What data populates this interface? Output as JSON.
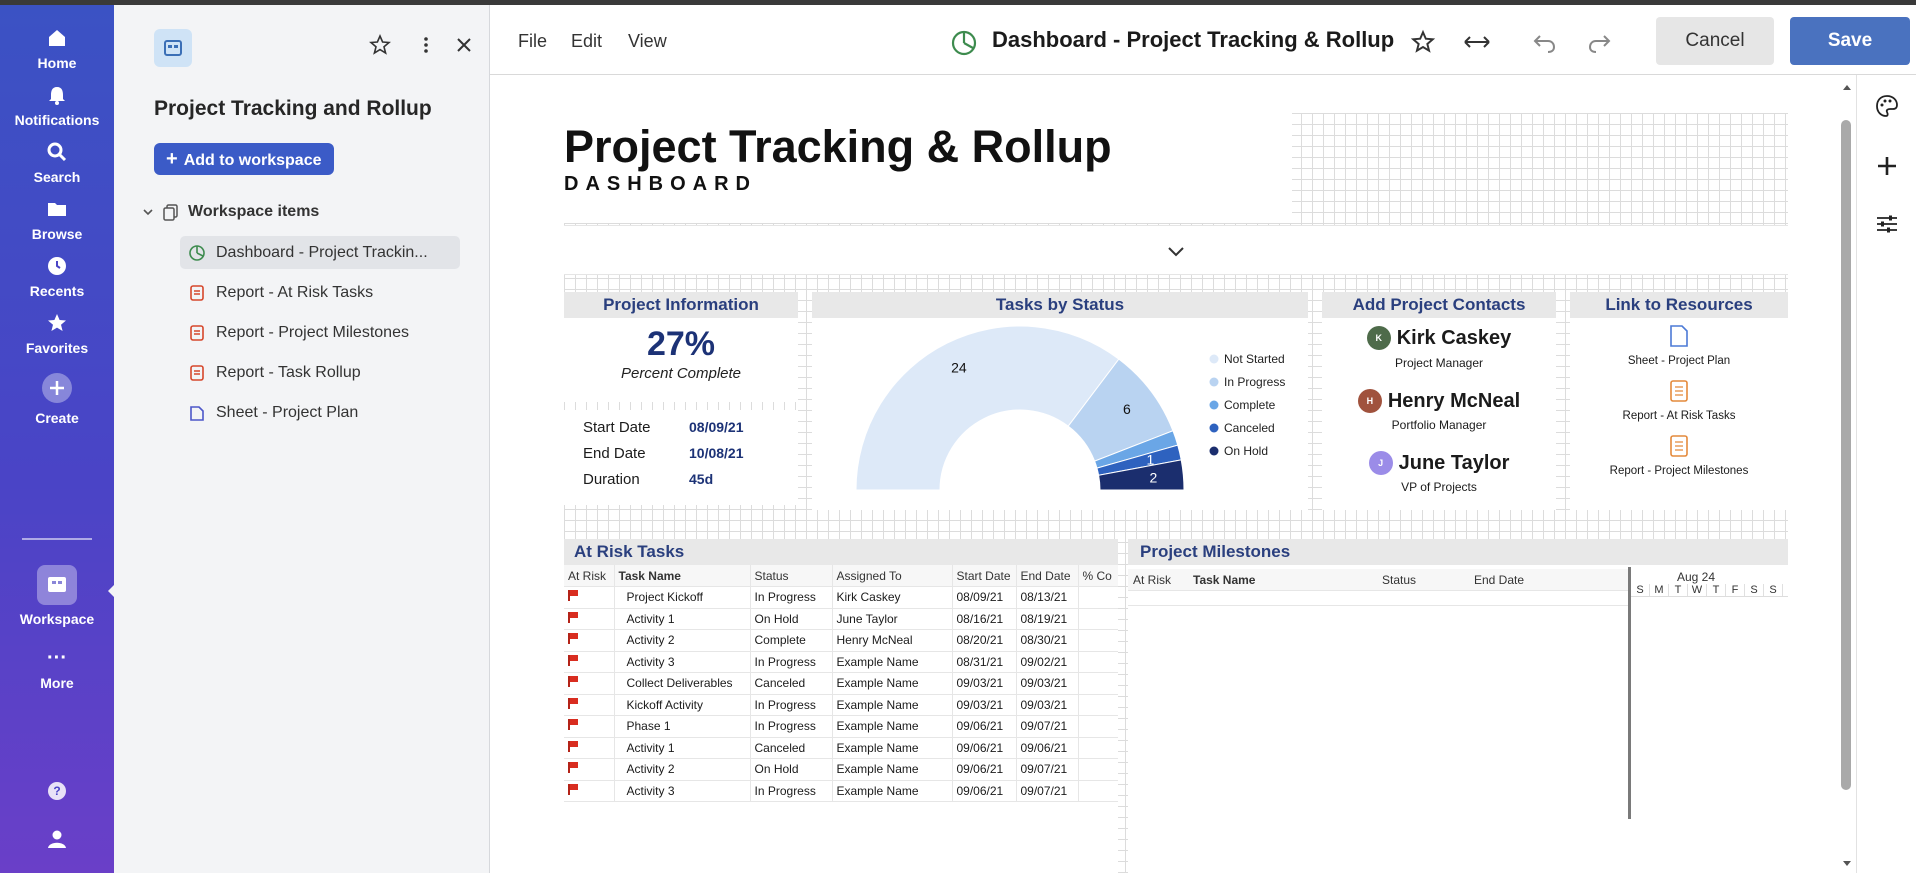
{
  "nav": {
    "items": [
      {
        "label": "Home",
        "icon": "home-icon"
      },
      {
        "label": "Notifications",
        "icon": "bell-icon"
      },
      {
        "label": "Search",
        "icon": "search-icon"
      },
      {
        "label": "Browse",
        "icon": "folder-icon"
      },
      {
        "label": "Recents",
        "icon": "clock-icon"
      },
      {
        "label": "Favorites",
        "icon": "star-icon"
      },
      {
        "label": "Create",
        "icon": "plus-icon"
      },
      {
        "label": "Workspace",
        "icon": "workspace-icon"
      },
      {
        "label": "More",
        "icon": "ellipsis-icon"
      }
    ]
  },
  "panel": {
    "title": "Project Tracking and Rollup",
    "add_button": "Add to workspace",
    "section_label": "Workspace items",
    "items": [
      {
        "label": "Dashboard - Project Trackin...",
        "type": "dashboard"
      },
      {
        "label": "Report - At Risk Tasks",
        "type": "report"
      },
      {
        "label": "Report - Project Milestones",
        "type": "report"
      },
      {
        "label": "Report - Task Rollup",
        "type": "report"
      },
      {
        "label": "Sheet - Project Plan",
        "type": "sheet"
      }
    ]
  },
  "toolbar": {
    "menus": [
      "File",
      "Edit",
      "View"
    ],
    "title": "Dashboard - Project Tracking & Rollup",
    "cancel": "Cancel",
    "save": "Save"
  },
  "dashboard": {
    "title": "Project Tracking & Rollup",
    "subtitle": "DASHBOARD",
    "project_info": {
      "title": "Project Information",
      "percent": "27%",
      "percent_label": "Percent Complete",
      "rows": [
        {
          "label": "Start Date",
          "value": "08/09/21"
        },
        {
          "label": "End Date",
          "value": "10/08/21"
        },
        {
          "label": "Duration",
          "value": "45d"
        }
      ]
    },
    "tasks_by_status": {
      "title": "Tasks by Status"
    },
    "contacts": {
      "title": "Add Project Contacts",
      "people": [
        {
          "initial": "K",
          "name": "Kirk Caskey",
          "role": "Project Manager",
          "color": "#4e6b4a"
        },
        {
          "initial": "H",
          "name": "Henry McNeal",
          "role": "Portfolio Manager",
          "color": "#a0523d"
        },
        {
          "initial": "J",
          "name": "June Taylor",
          "role": "VP of Projects",
          "color": "#9b8ce8"
        }
      ]
    },
    "resources": {
      "title": "Link to Resources",
      "links": [
        {
          "label": "Sheet - Project Plan",
          "icon": "sheet-icon"
        },
        {
          "label": "Report - At Risk Tasks",
          "icon": "report-icon"
        },
        {
          "label": "Report - Project Milestones",
          "icon": "report-icon"
        }
      ]
    },
    "at_risk": {
      "title": "At Risk Tasks",
      "columns": [
        "At Risk",
        "Task Name",
        "Status",
        "Assigned To",
        "Start Date",
        "End Date",
        "% Co"
      ],
      "rows": [
        [
          "Project Kickoff",
          "In Progress",
          "Kirk Caskey",
          "08/09/21",
          "08/13/21"
        ],
        [
          "Activity 1",
          "On Hold",
          "June Taylor",
          "08/16/21",
          "08/19/21"
        ],
        [
          "Activity 2",
          "Complete",
          "Henry McNeal",
          "08/20/21",
          "08/30/21"
        ],
        [
          "Activity 3",
          "In Progress",
          "Example Name",
          "08/31/21",
          "09/02/21"
        ],
        [
          "Collect Deliverables",
          "Canceled",
          "Example Name",
          "09/03/21",
          "09/03/21"
        ],
        [
          "Kickoff Activity",
          "In Progress",
          "Example Name",
          "09/03/21",
          "09/03/21"
        ],
        [
          "Phase 1",
          "In Progress",
          "Example Name",
          "09/06/21",
          "09/07/21"
        ],
        [
          "Activity 1",
          "Canceled",
          "Example Name",
          "09/06/21",
          "09/06/21"
        ],
        [
          "Activity 2",
          "On Hold",
          "Example Name",
          "09/06/21",
          "09/07/21"
        ],
        [
          "Activity 3",
          "In Progress",
          "Example Name",
          "09/06/21",
          "09/07/21"
        ]
      ]
    },
    "milestones": {
      "title": "Project Milestones",
      "columns": [
        "At Risk",
        "Task Name",
        "Status",
        "End Date"
      ],
      "gantt_month": "Aug 24",
      "gantt_days": [
        "S",
        "M",
        "T",
        "W",
        "T",
        "F",
        "S",
        "S"
      ]
    }
  },
  "chart_data": {
    "type": "pie",
    "title": "Tasks by Status",
    "style": "half-donut",
    "legend_position": "right",
    "categories": [
      "Not Started",
      "In Progress",
      "Complete",
      "Canceled",
      "On Hold"
    ],
    "values": [
      24,
      6,
      1,
      1,
      2
    ],
    "colors": [
      "#dde9f8",
      "#b9d3f1",
      "#6aa6e6",
      "#2e62bf",
      "#1b2e6e"
    ],
    "data_labels": [
      "24",
      "6",
      "",
      "1",
      "2"
    ]
  }
}
